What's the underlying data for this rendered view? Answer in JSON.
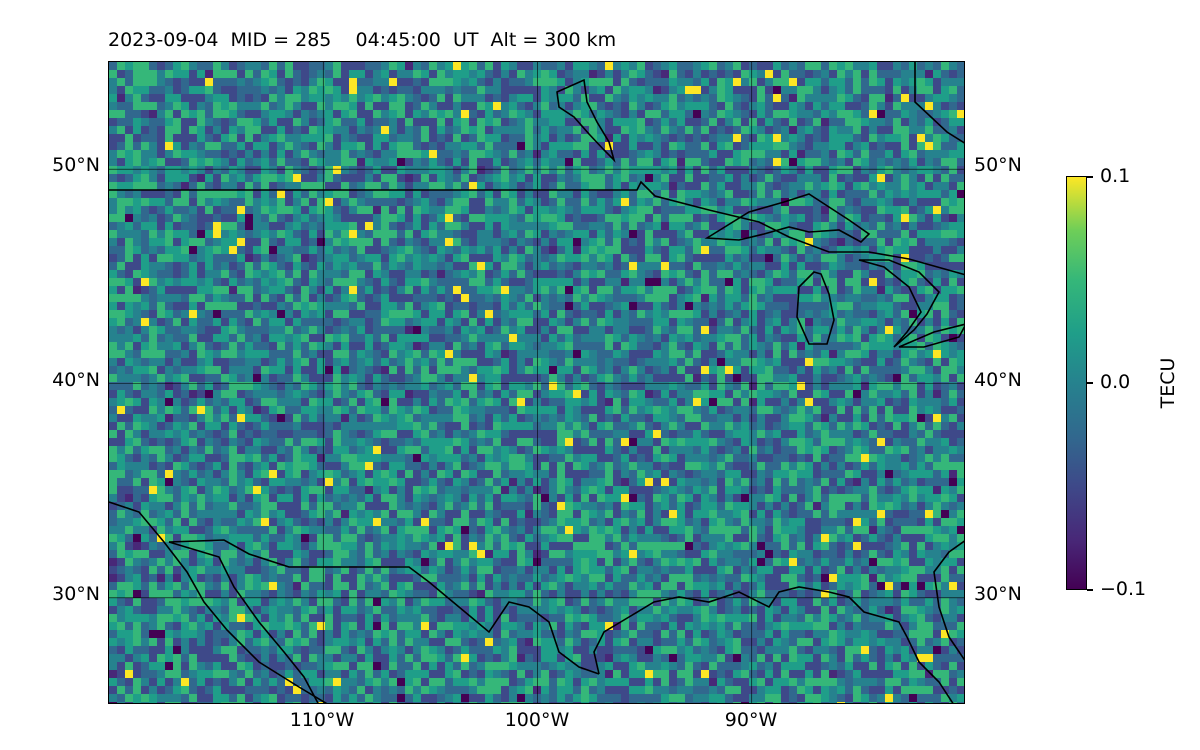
{
  "title": "2023-09-04  MID = 285    04:45:00  UT  Alt = 300 km",
  "map": {
    "lon_range": [
      -120,
      -80
    ],
    "lat_range": [
      25,
      55
    ],
    "lat_ticks": [
      {
        "value": 50,
        "label": "50°N"
      },
      {
        "value": 40,
        "label": "40°N"
      },
      {
        "value": 30,
        "label": "30°N"
      }
    ],
    "lon_ticks": [
      {
        "value": -110,
        "label": "110°W"
      },
      {
        "value": -100,
        "label": "100°W"
      },
      {
        "value": -90,
        "label": "90°W"
      }
    ]
  },
  "colorbar": {
    "label": "TECU",
    "colormap": "viridis",
    "min": -0.1,
    "max": 0.1,
    "ticks": [
      {
        "value": 0.1,
        "label": "0.1"
      },
      {
        "value": 0.0,
        "label": "0.0"
      },
      {
        "value": -0.1,
        "label": "−0.1"
      }
    ]
  }
}
